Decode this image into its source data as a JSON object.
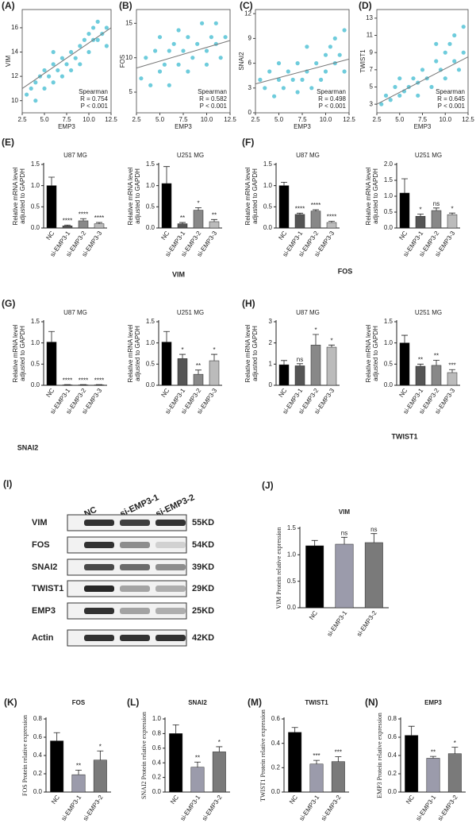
{
  "chart_data": [
    {
      "type": "scatter",
      "panel": "(A)",
      "xlabel": "EMP3",
      "ylabel": "VIM",
      "color": "#55c3d6",
      "xlim": [
        2.5,
        12.5
      ],
      "ylim": [
        9,
        17.5
      ],
      "xticks": [
        2.5,
        {
          "value": 5,
          "label": "5.0"
        },
        7.5,
        {
          "value": 10,
          "label": "10.0"
        },
        12.5
      ],
      "yticks": [
        10,
        12,
        14,
        16
      ],
      "x": [
        3,
        3.5,
        4,
        4.5,
        5,
        5,
        5.5,
        6,
        6,
        6.5,
        7,
        7,
        7.5,
        8,
        8,
        8.5,
        9,
        9,
        9.5,
        10,
        10,
        10.5,
        11,
        11,
        11.5,
        12,
        12,
        10.5,
        4,
        6
      ],
      "values": [
        10.5,
        11,
        11.5,
        12,
        11,
        12.5,
        12,
        13,
        11.5,
        12.5,
        13.5,
        12,
        13,
        14,
        12.5,
        13.5,
        14.5,
        13,
        15,
        15.5,
        14,
        16,
        15,
        16.5,
        15.5,
        16,
        14.5,
        15,
        10,
        14
      ],
      "trend": {
        "x": [
          2.5,
          12.5
        ],
        "y": [
          11,
          16
        ]
      },
      "annotations": [
        "Spearman",
        "R = 0.754",
        "P < 0.001"
      ]
    },
    {
      "type": "scatter",
      "panel": "(B)",
      "xlabel": "EMP3",
      "ylabel": "FOS",
      "color": "#55c3d6",
      "xlim": [
        2.5,
        12.5
      ],
      "ylim": [
        2,
        17
      ],
      "xticks": [
        2.5,
        {
          "value": 5,
          "label": "5.0"
        },
        7.5,
        {
          "value": 10,
          "label": "10.0"
        },
        12.5
      ],
      "yticks": [
        5,
        10,
        15
      ],
      "x": [
        3,
        3.5,
        4,
        4.5,
        5,
        5,
        5.5,
        6,
        6,
        6.5,
        7,
        7,
        7.5,
        8,
        8,
        8.5,
        9,
        9.5,
        10,
        10,
        10.5,
        11,
        11,
        11.5,
        12
      ],
      "values": [
        7,
        10,
        6,
        11,
        8,
        13,
        9,
        11,
        6,
        12,
        9,
        14,
        11,
        8,
        13,
        10,
        12,
        15,
        11,
        9,
        13,
        12,
        15,
        10,
        13
      ],
      "trend": {
        "x": [
          2.5,
          12.5
        ],
        "y": [
          8.5,
          12.5
        ]
      },
      "annotations": [
        "Spearman",
        "R = 0.582",
        "P < 0.001"
      ]
    },
    {
      "type": "scatter",
      "panel": "(C)",
      "xlabel": "EMP3",
      "ylabel": "SNAI2",
      "color": "#55c3d6",
      "xlim": [
        2.5,
        12.5
      ],
      "ylim": [
        0,
        12.5
      ],
      "xticks": [
        2.5,
        {
          "value": 5,
          "label": "5.0"
        },
        7.5,
        {
          "value": 10,
          "label": "10.0"
        },
        12.5
      ],
      "yticks": [
        0,
        3,
        6,
        9,
        12
      ],
      "x": [
        3,
        3.5,
        4,
        4.5,
        5,
        5,
        5.5,
        6,
        6.5,
        7,
        7,
        7.5,
        8,
        8.5,
        9,
        9.5,
        10,
        10,
        10.5,
        11,
        11,
        11.5,
        12,
        12,
        8
      ],
      "values": [
        4,
        3,
        5,
        2,
        4,
        6,
        3,
        5,
        4,
        2.5,
        6,
        4,
        5,
        3,
        6,
        4,
        7,
        5,
        8,
        6,
        9,
        7,
        5,
        10,
        8
      ],
      "trend": {
        "x": [
          2.5,
          12.5
        ],
        "y": [
          3.5,
          6.5
        ]
      },
      "annotations": [
        "Spearman",
        "R = 0.498",
        "P < 0.001"
      ]
    },
    {
      "type": "scatter",
      "panel": "(D)",
      "xlabel": "EMP3",
      "ylabel": "TWIST1",
      "color": "#55c3d6",
      "xlim": [
        2.5,
        12.5
      ],
      "ylim": [
        2,
        14
      ],
      "xticks": [
        2.5,
        {
          "value": 5,
          "label": "5.0"
        },
        7.5,
        {
          "value": 10,
          "label": "10.0"
        },
        12.5
      ],
      "yticks": [
        3,
        5,
        7,
        9,
        11,
        13
      ],
      "x": [
        3,
        3.5,
        4,
        4.5,
        5,
        5,
        5.5,
        6,
        6.5,
        7,
        7,
        7.5,
        8,
        8.5,
        9,
        9.5,
        10,
        10,
        10.5,
        11,
        11,
        11.5,
        12,
        12,
        9
      ],
      "values": [
        3,
        4,
        3.5,
        5,
        4,
        6,
        4.5,
        5,
        6,
        5.5,
        4,
        7,
        6,
        5,
        8,
        7,
        9,
        6,
        10,
        8,
        11,
        7,
        9,
        12,
        10
      ],
      "trend": {
        "x": [
          2.5,
          12.5
        ],
        "y": [
          3,
          8.5
        ]
      },
      "annotations": [
        "Spearman",
        "R = 0.645",
        "P < 0.001"
      ]
    },
    {
      "type": "bar",
      "panel": "(E)",
      "caption": "VIM",
      "title": "U87 MG",
      "ylabel": [
        "Relative mRNA level",
        "adjusted to GAPDH"
      ],
      "categories": [
        "NC",
        "si-EMP3-1",
        "si-EMP3-2",
        "si-EMP3-3"
      ],
      "values": [
        1.0,
        0.05,
        0.17,
        0.1
      ],
      "errors": [
        0.2,
        0.02,
        0.05,
        0.03
      ],
      "annotations": [
        null,
        "****",
        "****",
        "****"
      ],
      "colors": [
        "#000000",
        "#555555",
        "#888888",
        "#bbbbbb"
      ],
      "ylim": [
        0,
        1.5
      ],
      "yticks": [
        {
          "value": 0,
          "label": "0.0"
        },
        0.5,
        {
          "value": 1,
          "label": "1.0"
        },
        1.5
      ]
    },
    {
      "type": "bar",
      "title": "U251 MG",
      "ylabel": [
        "Relative mRNA level",
        "adjusted to GAPDH"
      ],
      "categories": [
        "NC",
        "si-EMP3-1",
        "si-EMP3-2",
        "si-EMP3-3"
      ],
      "values": [
        1.05,
        0.1,
        0.42,
        0.15
      ],
      "errors": [
        0.4,
        0.03,
        0.06,
        0.05
      ],
      "annotations": [
        null,
        "**",
        "*",
        "**"
      ],
      "colors": [
        "#000000",
        "#555555",
        "#888888",
        "#bbbbbb"
      ],
      "ylim": [
        0,
        1.5
      ],
      "yticks": [
        {
          "value": 0,
          "label": "0.0"
        },
        0.5,
        {
          "value": 1,
          "label": "1.0"
        },
        1.5
      ]
    },
    {
      "type": "bar",
      "panel": "(F)",
      "caption": "FOS",
      "title": "U87 MG",
      "ylabel": [
        "Relative mRNA level",
        "adjusted to GAPDH"
      ],
      "categories": [
        "NC",
        "si-EMP3-1",
        "si-EMP3-2",
        "si-EMP3-3"
      ],
      "values": [
        1.0,
        0.32,
        0.4,
        0.13
      ],
      "errors": [
        0.08,
        0.03,
        0.03,
        0.03
      ],
      "annotations": [
        null,
        "****",
        "****",
        "****"
      ],
      "colors": [
        "#000000",
        "#555555",
        "#888888",
        "#bbbbbb"
      ],
      "ylim": [
        0,
        1.5
      ],
      "yticks": [
        {
          "value": 0,
          "label": "0.0"
        },
        0.5,
        {
          "value": 1,
          "label": "1.0"
        },
        1.5
      ]
    },
    {
      "type": "bar",
      "title": "U251 MG",
      "ylabel": [
        "Relative mRNA level",
        "adjusted to GAPDH"
      ],
      "categories": [
        "NC",
        "si-EMP3-1",
        "si-EMP3-2",
        "si-EMP3-3"
      ],
      "values": [
        1.1,
        0.37,
        0.55,
        0.42
      ],
      "errors": [
        0.45,
        0.07,
        0.08,
        0.05
      ],
      "annotations": [
        null,
        "*",
        "ns",
        "*"
      ],
      "colors": [
        "#000000",
        "#555555",
        "#888888",
        "#bbbbbb"
      ],
      "ylim": [
        0,
        2
      ],
      "yticks": [
        {
          "value": 0,
          "label": "0.0"
        },
        0.5,
        {
          "value": 1,
          "label": "1.0"
        },
        1.5,
        {
          "value": 2,
          "label": "2.0"
        }
      ]
    },
    {
      "type": "bar",
      "panel": "(G)",
      "caption": "SNAI2",
      "title": "U87 MG",
      "ylabel": [
        "Relative mRNA level",
        "adjusted to GAPDH"
      ],
      "categories": [
        "NC",
        "si-EMP3-1",
        "si-EMP3-2",
        "si-EMP3-3"
      ],
      "values": [
        1.02,
        0.01,
        0.01,
        0.01
      ],
      "errors": [
        0.25,
        0.005,
        0.005,
        0.005
      ],
      "annotations": [
        null,
        "****",
        "****",
        "****"
      ],
      "colors": [
        "#000000",
        "#555555",
        "#888888",
        "#bbbbbb"
      ],
      "ylim": [
        0,
        1.5
      ],
      "yticks": [
        {
          "value": 0,
          "label": "0.0"
        },
        0.5,
        {
          "value": 1,
          "label": "1.0"
        },
        1.5
      ]
    },
    {
      "type": "bar",
      "title": "U251 MG",
      "ylabel": [
        "Relative mRNA level",
        "adjusted to GAPDH"
      ],
      "categories": [
        "NC",
        "si-EMP3-1",
        "si-EMP3-2",
        "si-EMP3-3"
      ],
      "values": [
        1.02,
        0.63,
        0.26,
        0.58
      ],
      "errors": [
        0.25,
        0.1,
        0.1,
        0.15
      ],
      "annotations": [
        null,
        "*",
        "**",
        "*"
      ],
      "colors": [
        "#000000",
        "#555555",
        "#888888",
        "#bbbbbb"
      ],
      "ylim": [
        0,
        1.5
      ],
      "yticks": [
        {
          "value": 0,
          "label": "0.0"
        },
        0.5,
        {
          "value": 1,
          "label": "1.0"
        },
        1.5
      ]
    },
    {
      "type": "bar",
      "panel": "(H)",
      "caption": "TWIST1",
      "title": "U87 MG",
      "ylabel": [
        "Relative mRNA level",
        "adjusted to GAPDH"
      ],
      "categories": [
        "NC",
        "si-EMP3-1",
        "si-EMP3-2",
        "si-EMP3-3"
      ],
      "values": [
        0.97,
        0.92,
        1.9,
        1.8
      ],
      "errors": [
        0.2,
        0.1,
        0.5,
        0.1
      ],
      "annotations": [
        null,
        "ns",
        "*",
        "*"
      ],
      "colors": [
        "#000000",
        "#555555",
        "#888888",
        "#bbbbbb"
      ],
      "ylim": [
        0,
        3
      ],
      "yticks": [
        0,
        1,
        2,
        3
      ]
    },
    {
      "type": "bar",
      "title": "U251 MG",
      "ylabel": [
        "Relative mRNA level",
        "adjusted to GAPDH"
      ],
      "categories": [
        "NC",
        "si-EMP3-1",
        "si-EMP3-2",
        "si-EMP3-3"
      ],
      "values": [
        1.0,
        0.45,
        0.47,
        0.3
      ],
      "errors": [
        0.18,
        0.05,
        0.12,
        0.07
      ],
      "annotations": [
        null,
        "**",
        "**",
        "***"
      ],
      "colors": [
        "#000000",
        "#555555",
        "#888888",
        "#bbbbbb"
      ],
      "ylim": [
        0,
        1.5
      ],
      "yticks": [
        {
          "value": 0,
          "label": "0.0"
        },
        0.5,
        {
          "value": 1,
          "label": "1.0"
        },
        1.5
      ]
    },
    {
      "type": "bar",
      "panel": "(J)",
      "title": "VIM",
      "ylabel": [
        "VIM Protein relative expression"
      ],
      "categories": [
        "NC",
        "si-EMP3-1",
        "si-EMP3-2"
      ],
      "values": [
        1.17,
        1.2,
        1.23
      ],
      "errors": [
        0.1,
        0.13,
        0.17
      ],
      "annotations": [
        null,
        "ns",
        "ns"
      ],
      "colors": [
        "#000000",
        "#9b9bab",
        "#7a7a7a"
      ],
      "ylim": [
        0,
        1.5
      ],
      "yticks": [
        {
          "value": 0,
          "label": "0.0"
        },
        0.5,
        {
          "value": 1,
          "label": "1.0"
        },
        1.5
      ]
    },
    {
      "type": "bar",
      "panel": "(K)",
      "title": "FOS",
      "ylabel": [
        "FOS Protein relative expression"
      ],
      "categories": [
        "NC",
        "si-EMP3-1",
        "si-EMP3-2"
      ],
      "values": [
        0.56,
        0.19,
        0.35
      ],
      "errors": [
        0.09,
        0.05,
        0.1
      ],
      "annotations": [
        null,
        "**",
        "*"
      ],
      "colors": [
        "#000000",
        "#9b9bab",
        "#7a7a7a"
      ],
      "ylim": [
        0,
        0.8
      ],
      "yticks": [
        {
          "value": 0,
          "label": "0.0"
        },
        0.2,
        0.4,
        0.6,
        0.8
      ]
    },
    {
      "type": "bar",
      "panel": "(L)",
      "title": "SNAI2",
      "ylabel": [
        "SNAI2 Protein relative expression"
      ],
      "categories": [
        "NC",
        "si-EMP3-1",
        "si-EMP3-2"
      ],
      "values": [
        0.8,
        0.34,
        0.55
      ],
      "errors": [
        0.12,
        0.07,
        0.07
      ],
      "annotations": [
        null,
        "**",
        "*"
      ],
      "colors": [
        "#000000",
        "#9b9bab",
        "#7a7a7a"
      ],
      "ylim": [
        0,
        1
      ],
      "yticks": [
        {
          "value": 0,
          "label": "0.0"
        },
        0.2,
        0.4,
        0.6,
        0.8,
        {
          "value": 1,
          "label": "1.0"
        }
      ]
    },
    {
      "type": "bar",
      "panel": "(M)",
      "title": "TWIST1",
      "ylabel": [
        "TWIST1 Protein relative expression"
      ],
      "categories": [
        "NC",
        "si-EMP3-1",
        "si-EMP3-2"
      ],
      "values": [
        0.49,
        0.23,
        0.25
      ],
      "errors": [
        0.04,
        0.03,
        0.04
      ],
      "annotations": [
        null,
        "***",
        "***"
      ],
      "colors": [
        "#000000",
        "#9b9bab",
        "#7a7a7a"
      ],
      "ylim": [
        0,
        0.6
      ],
      "yticks": [
        {
          "value": 0,
          "label": "0.0"
        },
        0.2,
        0.4,
        0.6
      ]
    },
    {
      "type": "bar",
      "panel": "(N)",
      "title": "EMP3",
      "ylabel": [
        "EMP3 Protein relative expression"
      ],
      "categories": [
        "NC",
        "si-EMP3-1",
        "si-EMP3-2"
      ],
      "values": [
        0.62,
        0.37,
        0.42
      ],
      "errors": [
        0.1,
        0.02,
        0.07
      ],
      "annotations": [
        null,
        "**",
        "*"
      ],
      "colors": [
        "#000000",
        "#9b9bab",
        "#7a7a7a"
      ],
      "ylim": [
        0,
        0.8
      ],
      "yticks": [
        {
          "value": 0,
          "label": "0.0"
        },
        0.2,
        0.4,
        0.6,
        0.8
      ]
    }
  ],
  "blot": {
    "panel": "(I)",
    "lanes": [
      "NC",
      "si-EMP3-1",
      "si-EMP3-2"
    ],
    "rows": [
      {
        "label": "VIM",
        "size": "55KD"
      },
      {
        "label": "FOS",
        "size": "54KD"
      },
      {
        "label": "SNAI2",
        "size": "39KD"
      },
      {
        "label": "TWIST1",
        "size": "29KD"
      },
      {
        "label": "EMP3",
        "size": "25KD"
      },
      {
        "label": "Actin",
        "size": "42KD"
      }
    ]
  }
}
